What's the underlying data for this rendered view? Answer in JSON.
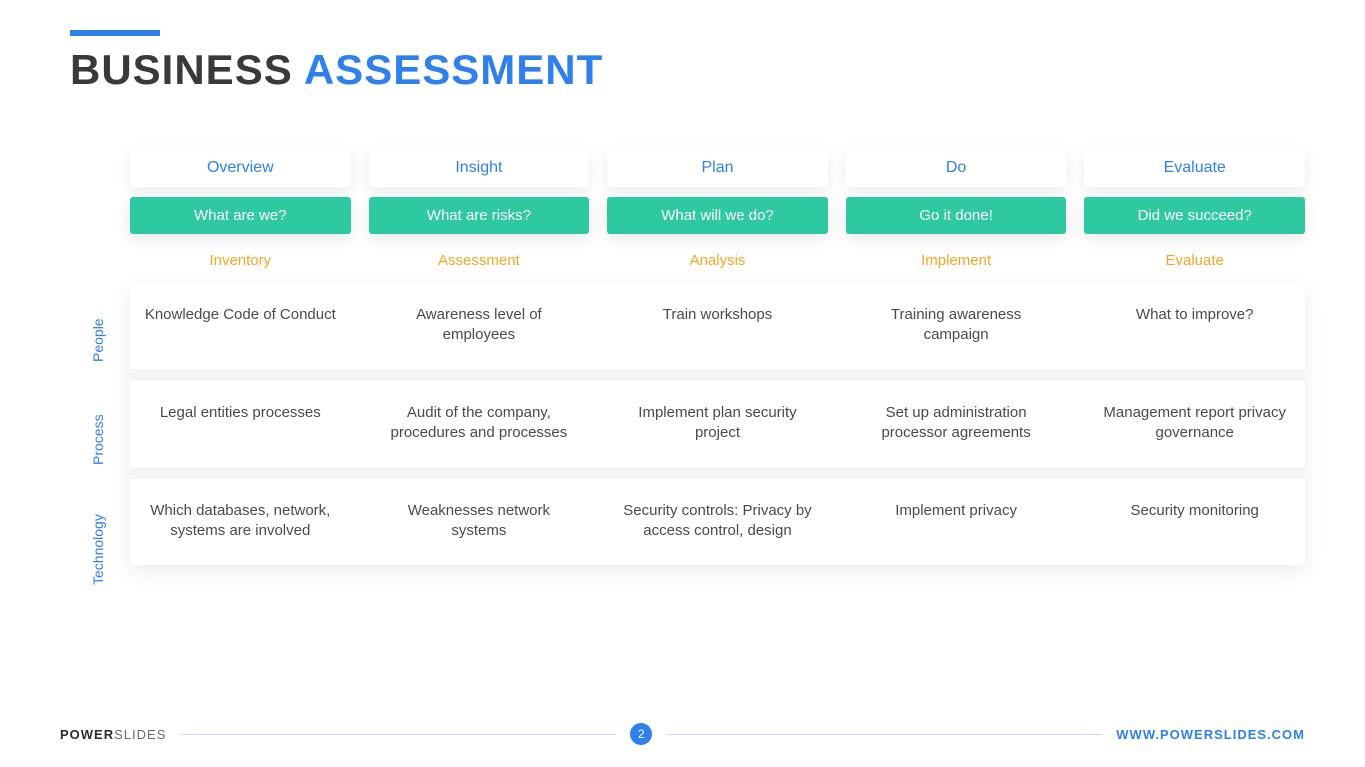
{
  "colors": {
    "accent": "#2f80ed",
    "title_word1": "#3a3a3a",
    "title_word2": "#2f80ed",
    "question_bg": "#2ec9a0",
    "category": "#f5a623",
    "body_text": "#4a4a4a",
    "background": "#ffffff"
  },
  "title": {
    "word1": "BUSINESS",
    "word2": "ASSESSMENT"
  },
  "columns": {
    "headers": [
      "Overview",
      "Insight",
      "Plan",
      "Do",
      "Evaluate"
    ],
    "questions": [
      "What are we?",
      "What are risks?",
      "What will we do?",
      "Go it done!",
      "Did we succeed?"
    ],
    "categories": [
      "Inventory",
      "Assessment",
      "Analysis",
      "Implement",
      "Evaluate"
    ]
  },
  "rows": [
    {
      "label": "People",
      "cells": [
        "Knowledge Code of Conduct",
        "Awareness level of employees",
        "Train workshops",
        "Training awareness campaign",
        "What to improve?"
      ]
    },
    {
      "label": "Process",
      "cells": [
        "Legal entities processes",
        "Audit of the company, procedures and processes",
        "Implement plan security project",
        "Set up administration processor agreements",
        "Management report privacy governance"
      ]
    },
    {
      "label": "Technology",
      "cells": [
        "Which databases, network, systems are involved",
        "Weaknesses network systems",
        "Security controls: Privacy by access control, design",
        "Implement privacy",
        "Security monitoring"
      ]
    }
  ],
  "footer": {
    "brand_bold": "POWER",
    "brand_light": "SLIDES",
    "page": "2",
    "url": "WWW.POWERSLIDES.COM"
  },
  "typography": {
    "title_fontsize": 42,
    "header_fontsize": 16,
    "question_fontsize": 15,
    "category_fontsize": 15,
    "body_fontsize": 15,
    "rowlabel_fontsize": 14
  }
}
